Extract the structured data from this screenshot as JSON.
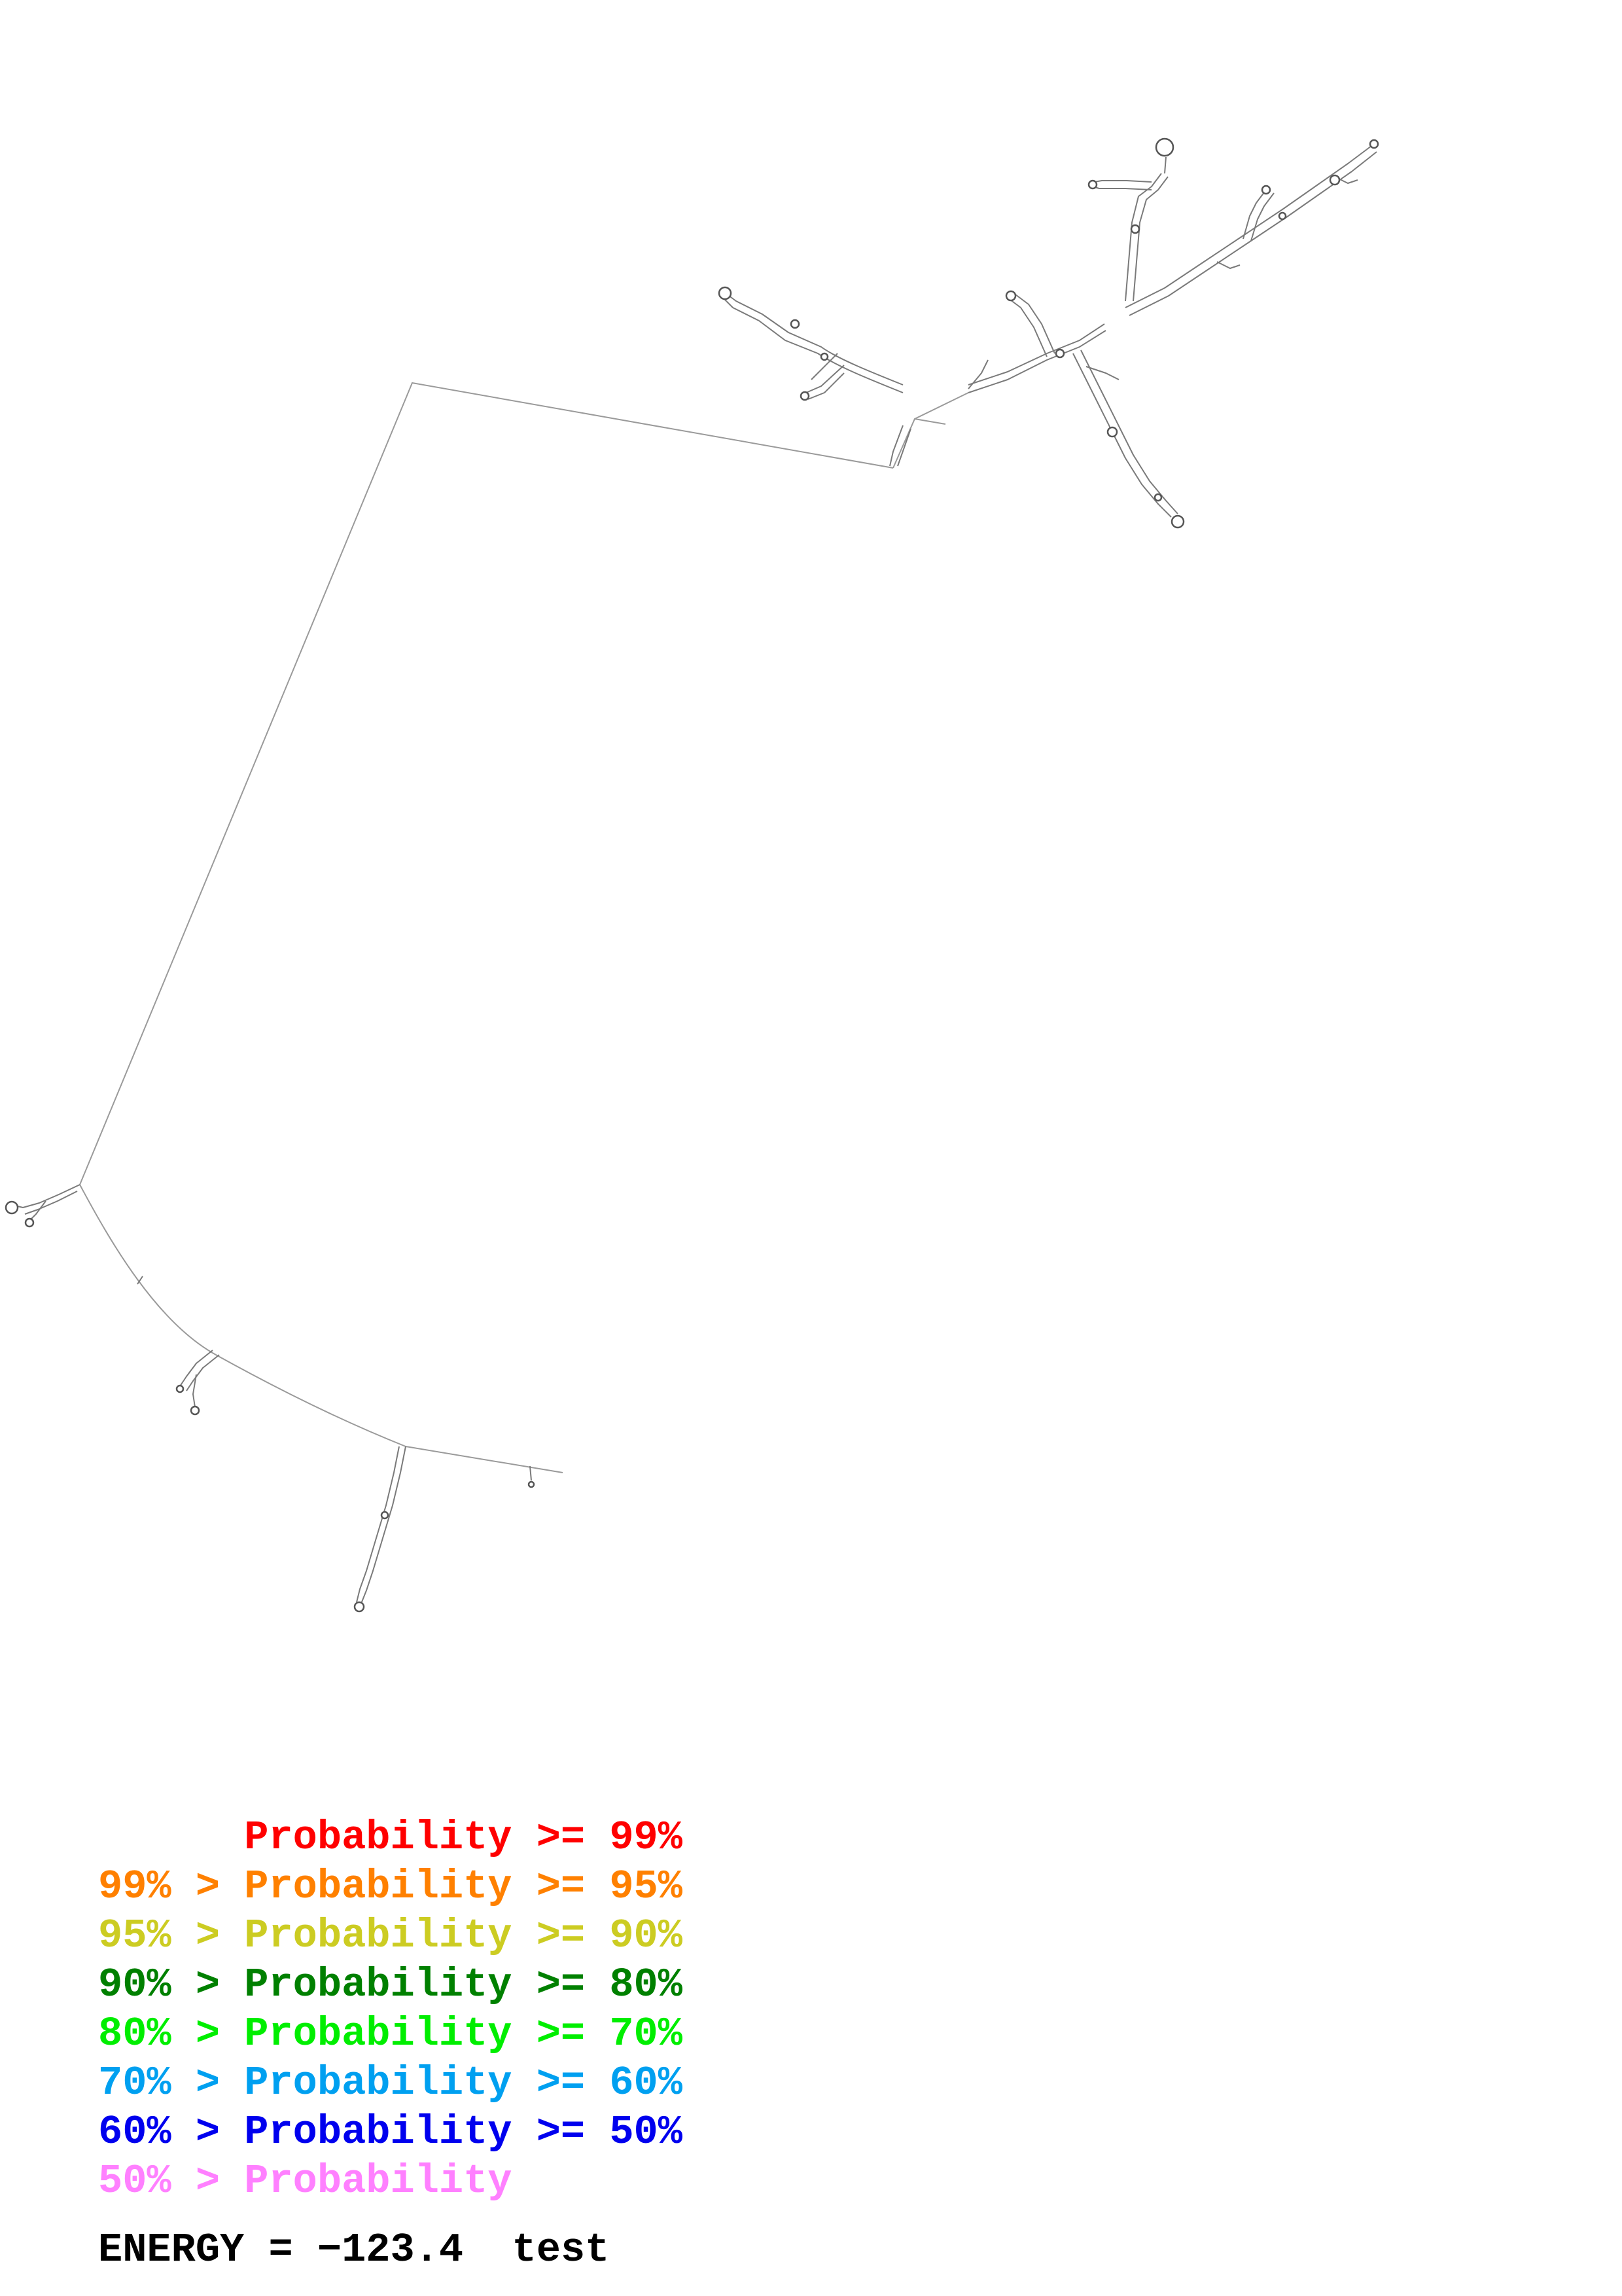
{
  "legend": {
    "rows": [
      {
        "prefix": "   ",
        "main": "Probability >= 99%",
        "color": "#ff0000"
      },
      {
        "prefix": "99% > ",
        "main": "Probability >= 95%",
        "color": "#ff8000"
      },
      {
        "prefix": "95% > ",
        "main": "Probability >= 90%",
        "color": "#cccc22"
      },
      {
        "prefix": "90% > ",
        "main": "Probability >= 80%",
        "color": "#008000"
      },
      {
        "prefix": "80% > ",
        "main": "Probability >= 70%",
        "color": "#00ee00"
      },
      {
        "prefix": "70% > ",
        "main": "Probability >= 60%",
        "color": "#00a0f0"
      },
      {
        "prefix": "60% > ",
        "main": "Probability >= 50%",
        "color": "#0000ee"
      },
      {
        "prefix": "50% > ",
        "main": "Probability",
        "color": "#ff80ff"
      }
    ]
  },
  "energy": {
    "label": "ENERGY = ",
    "value": "−123.4",
    "name": "test"
  },
  "colors": {
    "structure_stroke": "#7a7a7a",
    "backbone": "#9a9a9a"
  }
}
